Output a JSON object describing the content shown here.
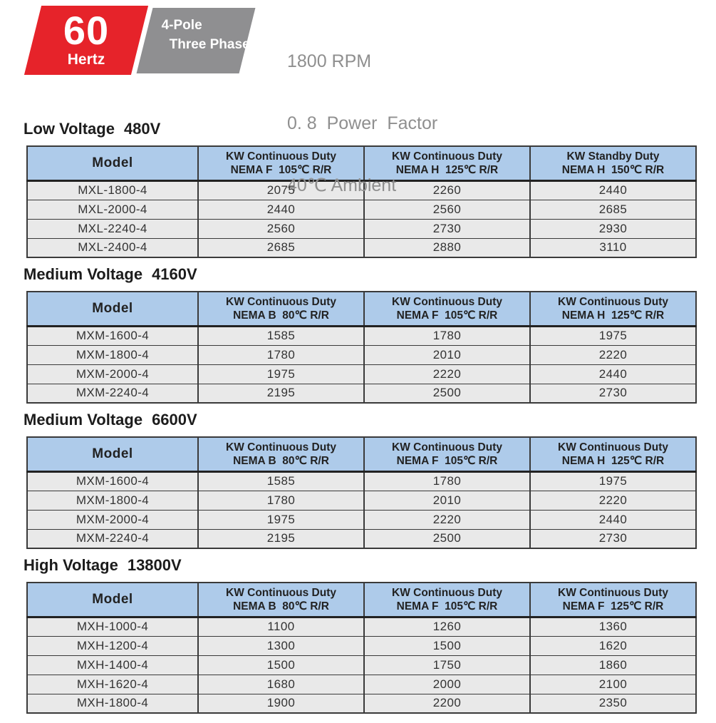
{
  "header": {
    "frequency": "60",
    "frequency_unit": "Hertz",
    "pole": "4-Pole",
    "phase": "Three Phase",
    "specs": [
      "1800 RPM",
      "0. 8  Power  Factor",
      "40℃ Ambient"
    ]
  },
  "colors": {
    "badge_red": "#e6232a",
    "badge_gray": "#8f8f91",
    "table_header_blue": "#aecbea",
    "row_gray": "#e9e9e9",
    "border_dark": "#3a3a3a",
    "spec_text_gray": "#8f8f8f"
  },
  "tables": [
    {
      "title": "Low Voltage",
      "voltage": "480V",
      "columns": [
        {
          "line1": "Model",
          "line2": ""
        },
        {
          "line1": "KW Continuous Duty",
          "line2": "NEMA F  105℃ R/R"
        },
        {
          "line1": "KW Continuous Duty",
          "line2": "NEMA H  125℃ R/R"
        },
        {
          "line1": "KW Standby Duty",
          "line2": "NEMA H  150℃ R/R"
        }
      ],
      "rows": [
        [
          "MXL-1800-4",
          "2075",
          "2260",
          "2440"
        ],
        [
          "MXL-2000-4",
          "2440",
          "2560",
          "2685"
        ],
        [
          "MXL-2240-4",
          "2560",
          "2730",
          "2930"
        ],
        [
          "MXL-2400-4",
          "2685",
          "2880",
          "3110"
        ]
      ]
    },
    {
      "title": "Medium Voltage",
      "voltage": "4160V",
      "columns": [
        {
          "line1": "Model",
          "line2": ""
        },
        {
          "line1": "KW Continuous Duty",
          "line2": "NEMA B  80℃ R/R"
        },
        {
          "line1": "KW Continuous Duty",
          "line2": "NEMA F  105℃ R/R"
        },
        {
          "line1": "KW Continuous Duty",
          "line2": "NEMA H  125℃ R/R"
        }
      ],
      "rows": [
        [
          "MXM-1600-4",
          "1585",
          "1780",
          "1975"
        ],
        [
          "MXM-1800-4",
          "1780",
          "2010",
          "2220"
        ],
        [
          "MXM-2000-4",
          "1975",
          "2220",
          "2440"
        ],
        [
          "MXM-2240-4",
          "2195",
          "2500",
          "2730"
        ]
      ]
    },
    {
      "title": "Medium Voltage",
      "voltage": "6600V",
      "columns": [
        {
          "line1": "Model",
          "line2": ""
        },
        {
          "line1": "KW Continuous Duty",
          "line2": "NEMA B  80℃ R/R"
        },
        {
          "line1": "KW Continuous Duty",
          "line2": "NEMA F  105℃ R/R"
        },
        {
          "line1": "KW Continuous Duty",
          "line2": "NEMA H  125℃ R/R"
        }
      ],
      "rows": [
        [
          "MXM-1600-4",
          "1585",
          "1780",
          "1975"
        ],
        [
          "MXM-1800-4",
          "1780",
          "2010",
          "2220"
        ],
        [
          "MXM-2000-4",
          "1975",
          "2220",
          "2440"
        ],
        [
          "MXM-2240-4",
          "2195",
          "2500",
          "2730"
        ]
      ]
    },
    {
      "title": "High Voltage",
      "voltage": "13800V",
      "columns": [
        {
          "line1": "Model",
          "line2": ""
        },
        {
          "line1": "KW Continuous Duty",
          "line2": "NEMA B  80℃ R/R"
        },
        {
          "line1": "KW Continuous Duty",
          "line2": "NEMA F  105℃ R/R"
        },
        {
          "line1": "KW Continuous Duty",
          "line2": "NEMA F  125℃ R/R"
        }
      ],
      "rows": [
        [
          "MXH-1000-4",
          "1100",
          "1260",
          "1360"
        ],
        [
          "MXH-1200-4",
          "1300",
          "1500",
          "1620"
        ],
        [
          "MXH-1400-4",
          "1500",
          "1750",
          "1860"
        ],
        [
          "MXH-1620-4",
          "1680",
          "2000",
          "2100"
        ],
        [
          "MXH-1800-4",
          "1900",
          "2200",
          "2350"
        ]
      ]
    }
  ]
}
